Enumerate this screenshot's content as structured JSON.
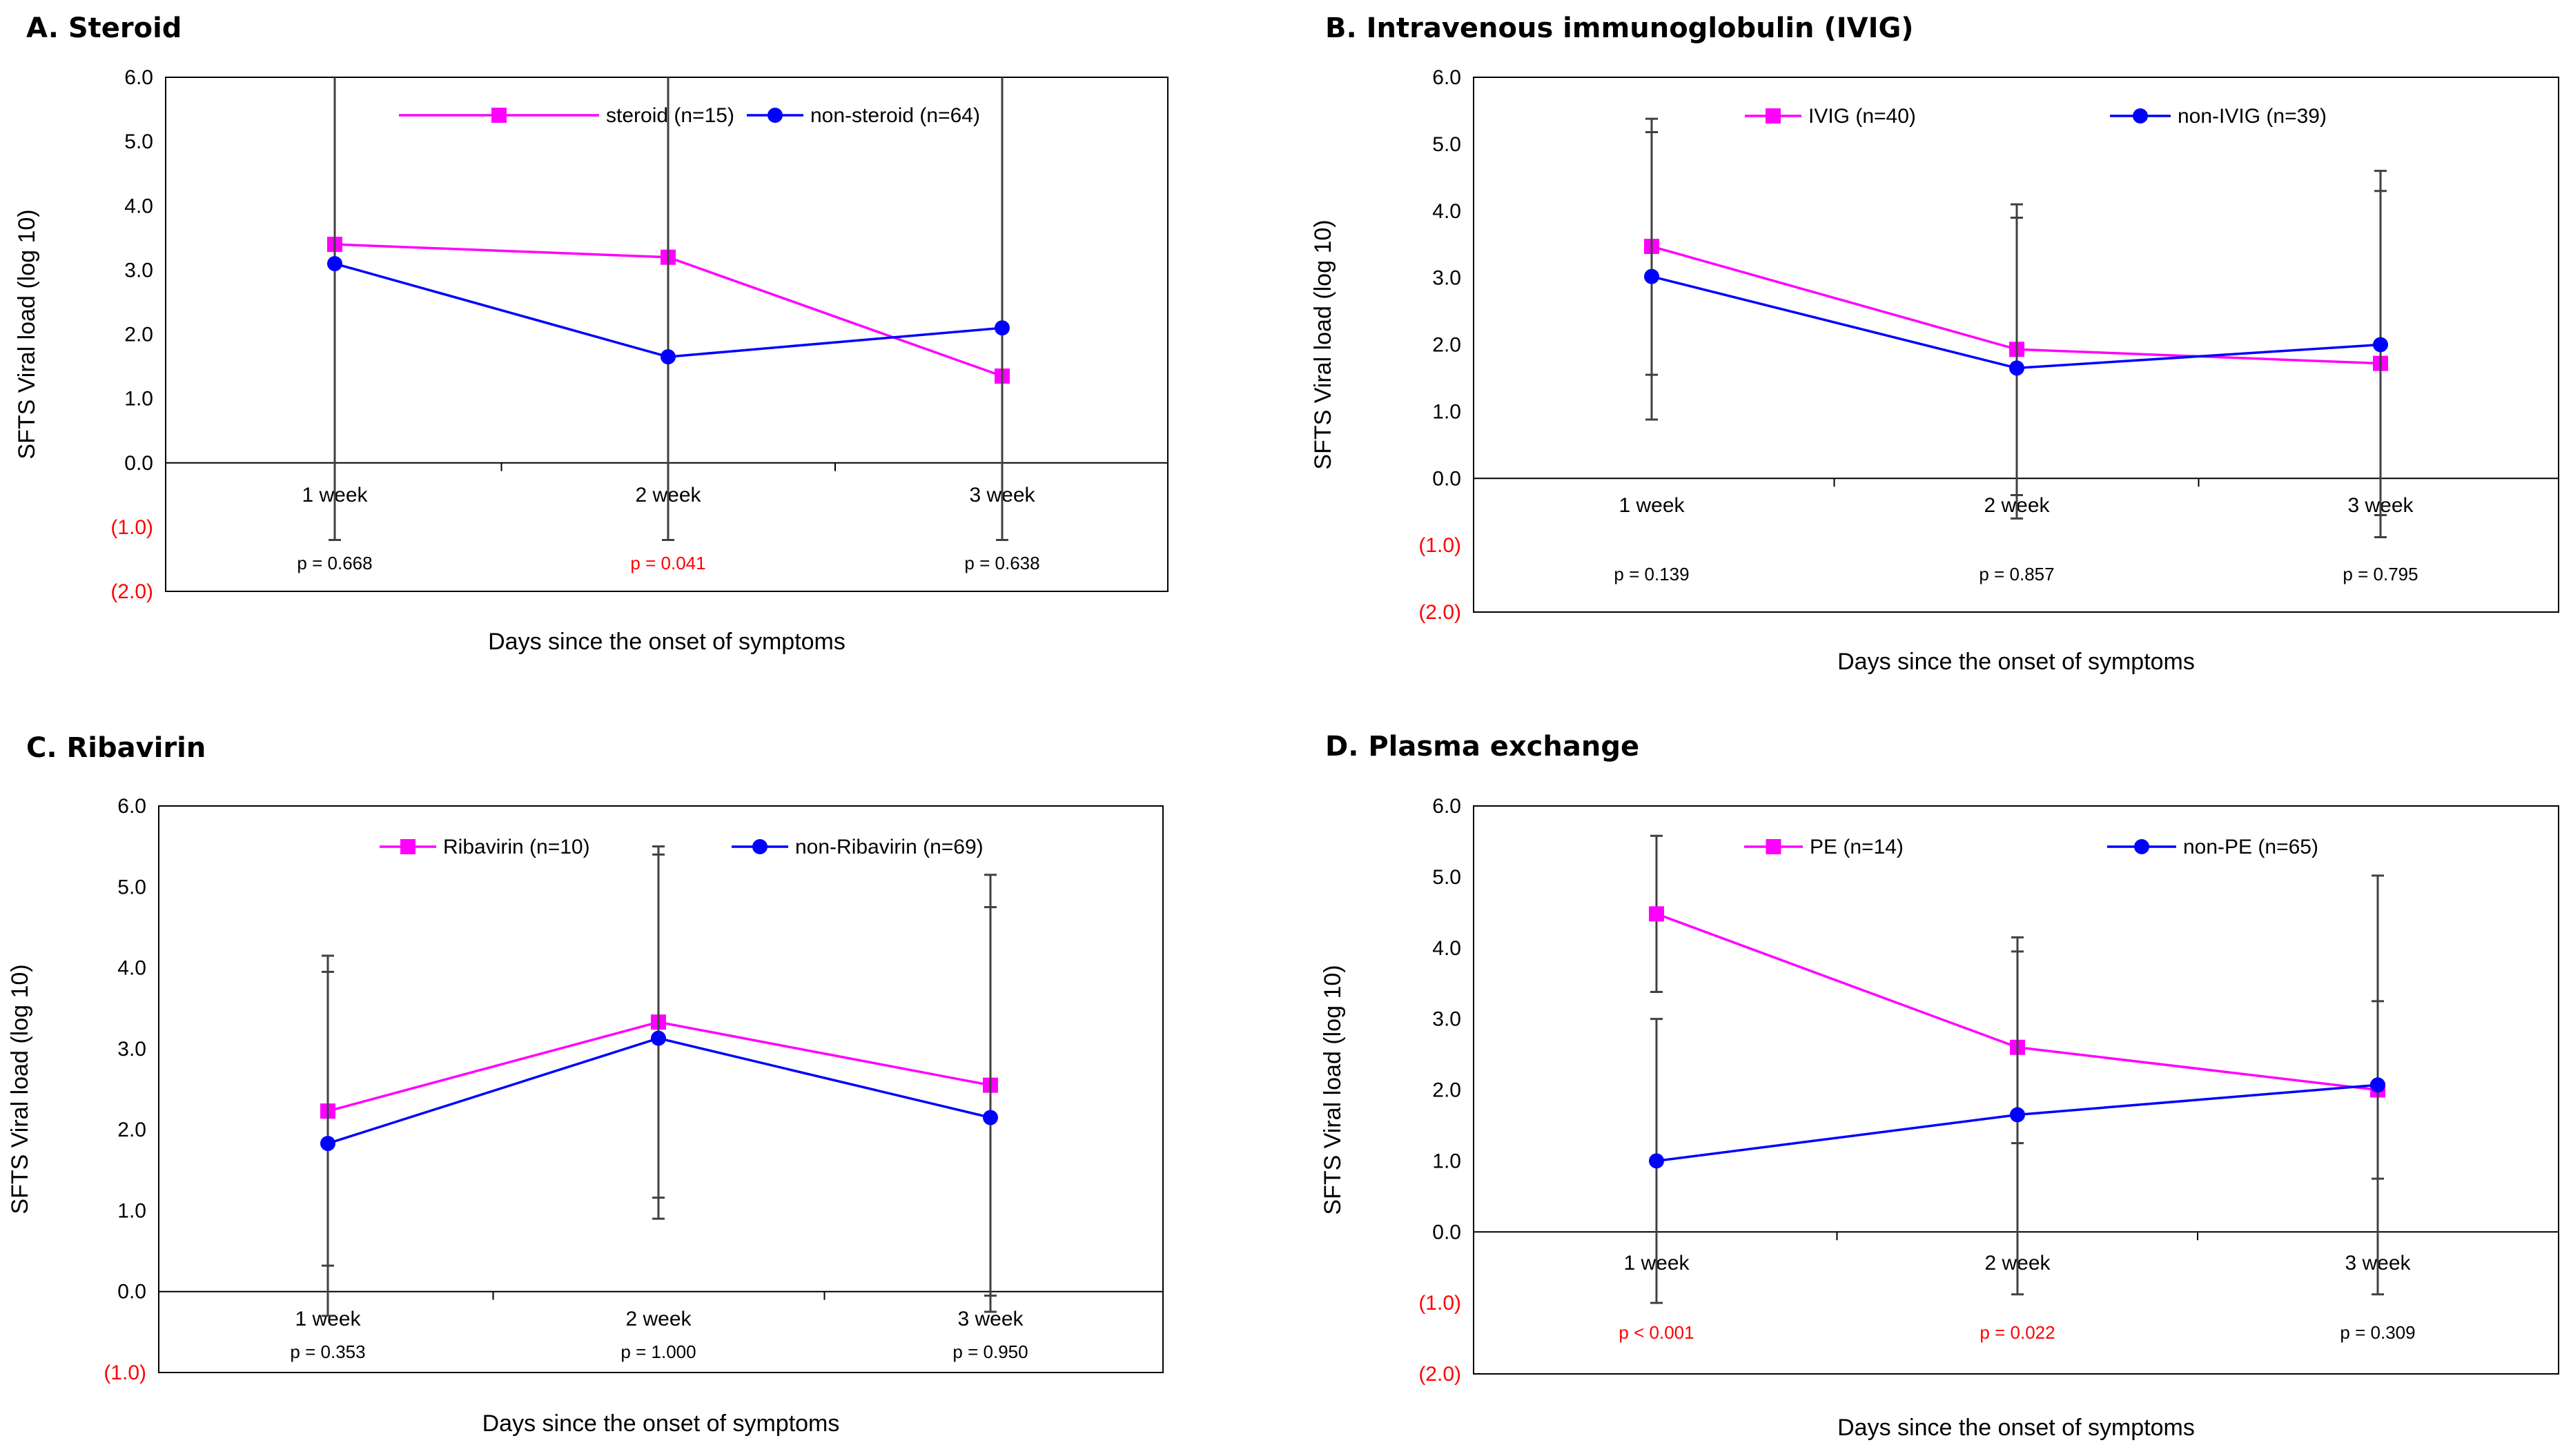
{
  "colors": {
    "treated": "#ff00ff",
    "control": "#0000ff",
    "error_bar": "#404040",
    "significant": "#ff0000"
  },
  "chart_data": [
    {
      "type": "line",
      "panel": "A",
      "title": "A. Steroid",
      "xlabel": "Days since the onset of symptoms",
      "ylabel": "SFTS Viral load (log 10)",
      "categories": [
        "1 week",
        "2 week",
        "3 week"
      ],
      "ylim": [
        -2.0,
        6.0
      ],
      "yticks": [
        6.0,
        5.0,
        4.0,
        3.0,
        2.0,
        1.0,
        0.0,
        -1.0,
        -2.0
      ],
      "ytick_labels": [
        "6.0",
        "5.0",
        "4.0",
        "3.0",
        "2.0",
        "1.0",
        "0.0",
        "(1.0)",
        "(2.0)"
      ],
      "legend": "top",
      "series": [
        {
          "name": "steroid (n=15)",
          "marker": "square",
          "values": [
            3.4,
            3.2,
            1.35
          ],
          "err_low": [
            -1.2,
            -1.2,
            -1.2
          ],
          "err_high": [
            6.0,
            6.0,
            6.0
          ]
        },
        {
          "name": "non-steroid (n=64)",
          "marker": "circle",
          "values": [
            3.1,
            1.65,
            2.1
          ],
          "err_low": [
            -1.2,
            -1.2,
            -1.2
          ],
          "err_high": [
            6.0,
            6.0,
            6.0
          ]
        }
      ],
      "p_values": [
        "p = 0.668",
        "p = 0.041",
        "p = 0.638"
      ],
      "p_significant": [
        false,
        true,
        false
      ]
    },
    {
      "type": "line",
      "panel": "B",
      "title": "B. Intravenous immunoglobulin (IVIG)",
      "xlabel": "Days since the onset of symptoms",
      "ylabel": "SFTS Viral load (log 10)",
      "categories": [
        "1 week",
        "2 week",
        "3 week"
      ],
      "ylim": [
        -2.0,
        6.0
      ],
      "yticks": [
        6.0,
        5.0,
        4.0,
        3.0,
        2.0,
        1.0,
        0.0,
        -1.0,
        -2.0
      ],
      "ytick_labels": [
        "6.0",
        "5.0",
        "4.0",
        "3.0",
        "2.0",
        "1.0",
        "0.0",
        "(1.0)",
        "(2.0)"
      ],
      "legend": "top",
      "series": [
        {
          "name": "IVIG (n=40)",
          "marker": "square",
          "values": [
            3.47,
            1.93,
            1.72
          ],
          "err_low": [
            1.55,
            -0.25,
            -0.55
          ],
          "err_high": [
            5.38,
            4.1,
            4.3
          ]
        },
        {
          "name": "non-IVIG (n=39)",
          "marker": "circle",
          "values": [
            3.02,
            1.65,
            2.0
          ],
          "err_low": [
            0.88,
            -0.6,
            -0.88
          ],
          "err_high": [
            5.18,
            3.9,
            4.6
          ]
        }
      ],
      "p_values": [
        "p = 0.139",
        "p = 0.857",
        "p = 0.795"
      ],
      "p_significant": [
        false,
        false,
        false
      ]
    },
    {
      "type": "line",
      "panel": "C",
      "title": "C. Ribavirin",
      "xlabel": "Days since the onset of symptoms",
      "ylabel": "SFTS Viral load (log 10)",
      "categories": [
        "1 week",
        "2 week",
        "3 week"
      ],
      "ylim": [
        -1.0,
        6.0
      ],
      "yticks": [
        6.0,
        5.0,
        4.0,
        3.0,
        2.0,
        1.0,
        0.0,
        -1.0
      ],
      "ytick_labels": [
        "6.0",
        "5.0",
        "4.0",
        "3.0",
        "2.0",
        "1.0",
        "0.0",
        "(1.0)"
      ],
      "legend": "top",
      "series": [
        {
          "name": "Ribavirin (n=10)",
          "marker": "square",
          "values": [
            2.23,
            3.33,
            2.55
          ],
          "err_low": [
            0.32,
            1.16,
            -0.05
          ],
          "err_high": [
            4.15,
            5.5,
            5.15
          ]
        },
        {
          "name": "non-Ribavirin (n=69)",
          "marker": "circle",
          "values": [
            1.83,
            3.13,
            2.15
          ],
          "err_low": [
            -0.3,
            0.9,
            -0.25
          ],
          "err_high": [
            3.95,
            5.4,
            4.75
          ]
        }
      ],
      "p_values": [
        "p = 0.353",
        "p = 1.000",
        "p = 0.950"
      ],
      "p_significant": [
        false,
        false,
        false
      ]
    },
    {
      "type": "line",
      "panel": "D",
      "title": "D. Plasma exchange",
      "xlabel": "Days since the onset of symptoms",
      "ylabel": "SFTS Viral load (log 10)",
      "categories": [
        "1 week",
        "2 week",
        "3 week"
      ],
      "ylim": [
        -2.0,
        6.0
      ],
      "yticks": [
        6.0,
        5.0,
        4.0,
        3.0,
        2.0,
        1.0,
        0.0,
        -1.0,
        -2.0
      ],
      "ytick_labels": [
        "6.0",
        "5.0",
        "4.0",
        "3.0",
        "2.0",
        "1.0",
        "0.0",
        "(1.0)",
        "(2.0)"
      ],
      "legend": "top",
      "series": [
        {
          "name": "PE (n=14)",
          "marker": "square",
          "values": [
            4.48,
            2.6,
            2.0
          ],
          "err_low": [
            3.38,
            1.25,
            0.75
          ],
          "err_high": [
            5.58,
            3.95,
            3.25
          ]
        },
        {
          "name": "non-PE (n=65)",
          "marker": "circle",
          "values": [
            1.0,
            1.65,
            2.07
          ],
          "err_low": [
            -1.0,
            -0.88,
            -0.88
          ],
          "err_high": [
            3.0,
            4.15,
            5.02
          ]
        }
      ],
      "p_values": [
        "p < 0.001",
        "p = 0.022",
        "p = 0.309"
      ],
      "p_significant": [
        true,
        true,
        false
      ]
    }
  ]
}
